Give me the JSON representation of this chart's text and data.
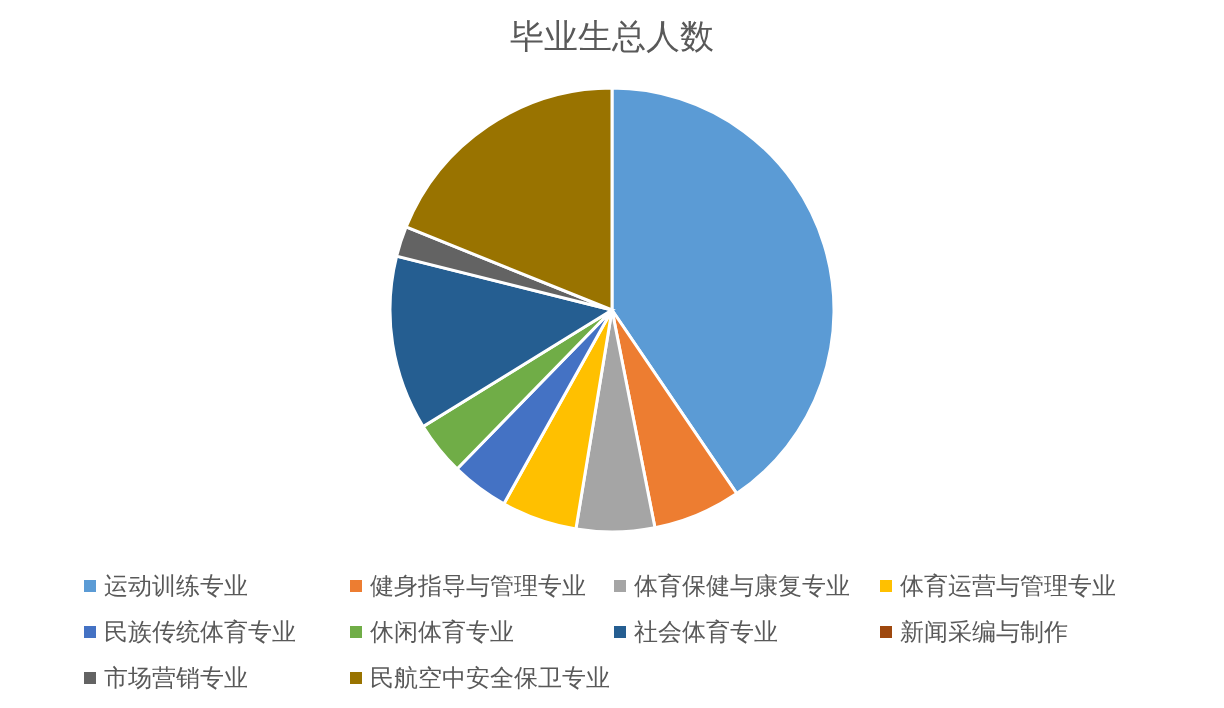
{
  "chart_data": {
    "type": "pie",
    "title": "毕业生总人数",
    "categories": [
      "运动训练专业",
      "健身指导与管理专业",
      "体育保健与康复专业",
      "体育运营与管理专业",
      "民族传统体育专业",
      "休闲体育专业",
      "社会体育专业",
      "新闻采编与制作",
      "市场营销专业",
      "民航空中安全保卫专业"
    ],
    "values": [
      40.5,
      6.4,
      5.7,
      5.5,
      4.2,
      3.9,
      12.7,
      0,
      2.2,
      18.9
    ],
    "colors": [
      "#5b9bd5",
      "#ed7d31",
      "#a5a5a5",
      "#ffc000",
      "#4472c4",
      "#70ad47",
      "#255e91",
      "#9e480e",
      "#636363",
      "#997300"
    ],
    "legend": "bottom"
  }
}
